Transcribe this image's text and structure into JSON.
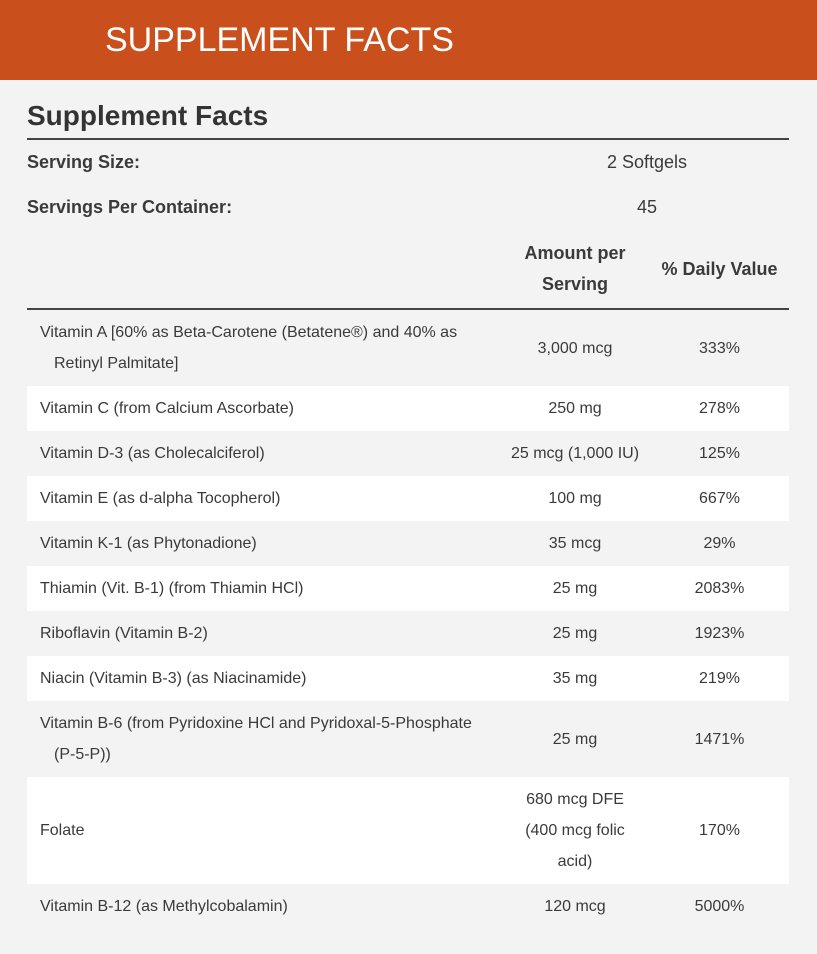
{
  "header": {
    "title": "SUPPLEMENT FACTS"
  },
  "facts": {
    "title": "Supplement Facts",
    "serving_size": {
      "label": "Serving Size:",
      "value": "2 Softgels"
    },
    "servings_per_container": {
      "label": "Servings Per Container:",
      "value": "45"
    },
    "columns": {
      "amount": "Amount per Serving",
      "daily_value": "% Daily Value"
    },
    "rows": [
      [
        "Vitamin A [60% as Beta-Carotene (Betatene®) and 40% as Retinyl Palmitate]",
        "3,000 mcg",
        "333%"
      ],
      [
        "Vitamin C (from Calcium Ascorbate)",
        "250 mg",
        "278%"
      ],
      [
        "Vitamin D-3 (as Cholecalciferol)",
        "25 mcg (1,000 IU)",
        "125%"
      ],
      [
        "Vitamin E (as d-alpha Tocopherol)",
        "100 mg",
        "667%"
      ],
      [
        "Vitamin K-1 (as Phytonadione)",
        "35 mcg",
        "29%"
      ],
      [
        "Thiamin (Vit. B-1) (from Thiamin HCl)",
        "25 mg",
        "2083%"
      ],
      [
        "Riboflavin (Vitamin B-2)",
        "25 mg",
        "1923%"
      ],
      [
        "Niacin (Vitamin B-3) (as Niacinamide)",
        "35 mg",
        "219%"
      ],
      [
        "Vitamin B-6 (from Pyridoxine HCl and Pyridoxal-5-Phosphate (P-5-P))",
        "25 mg",
        "1471%"
      ],
      [
        "Folate",
        "680 mcg DFE (400 mcg folic acid)",
        "170%"
      ],
      [
        "Vitamin B-12 (as Methylcobalamin)",
        "120 mcg",
        "5000%"
      ]
    ]
  }
}
